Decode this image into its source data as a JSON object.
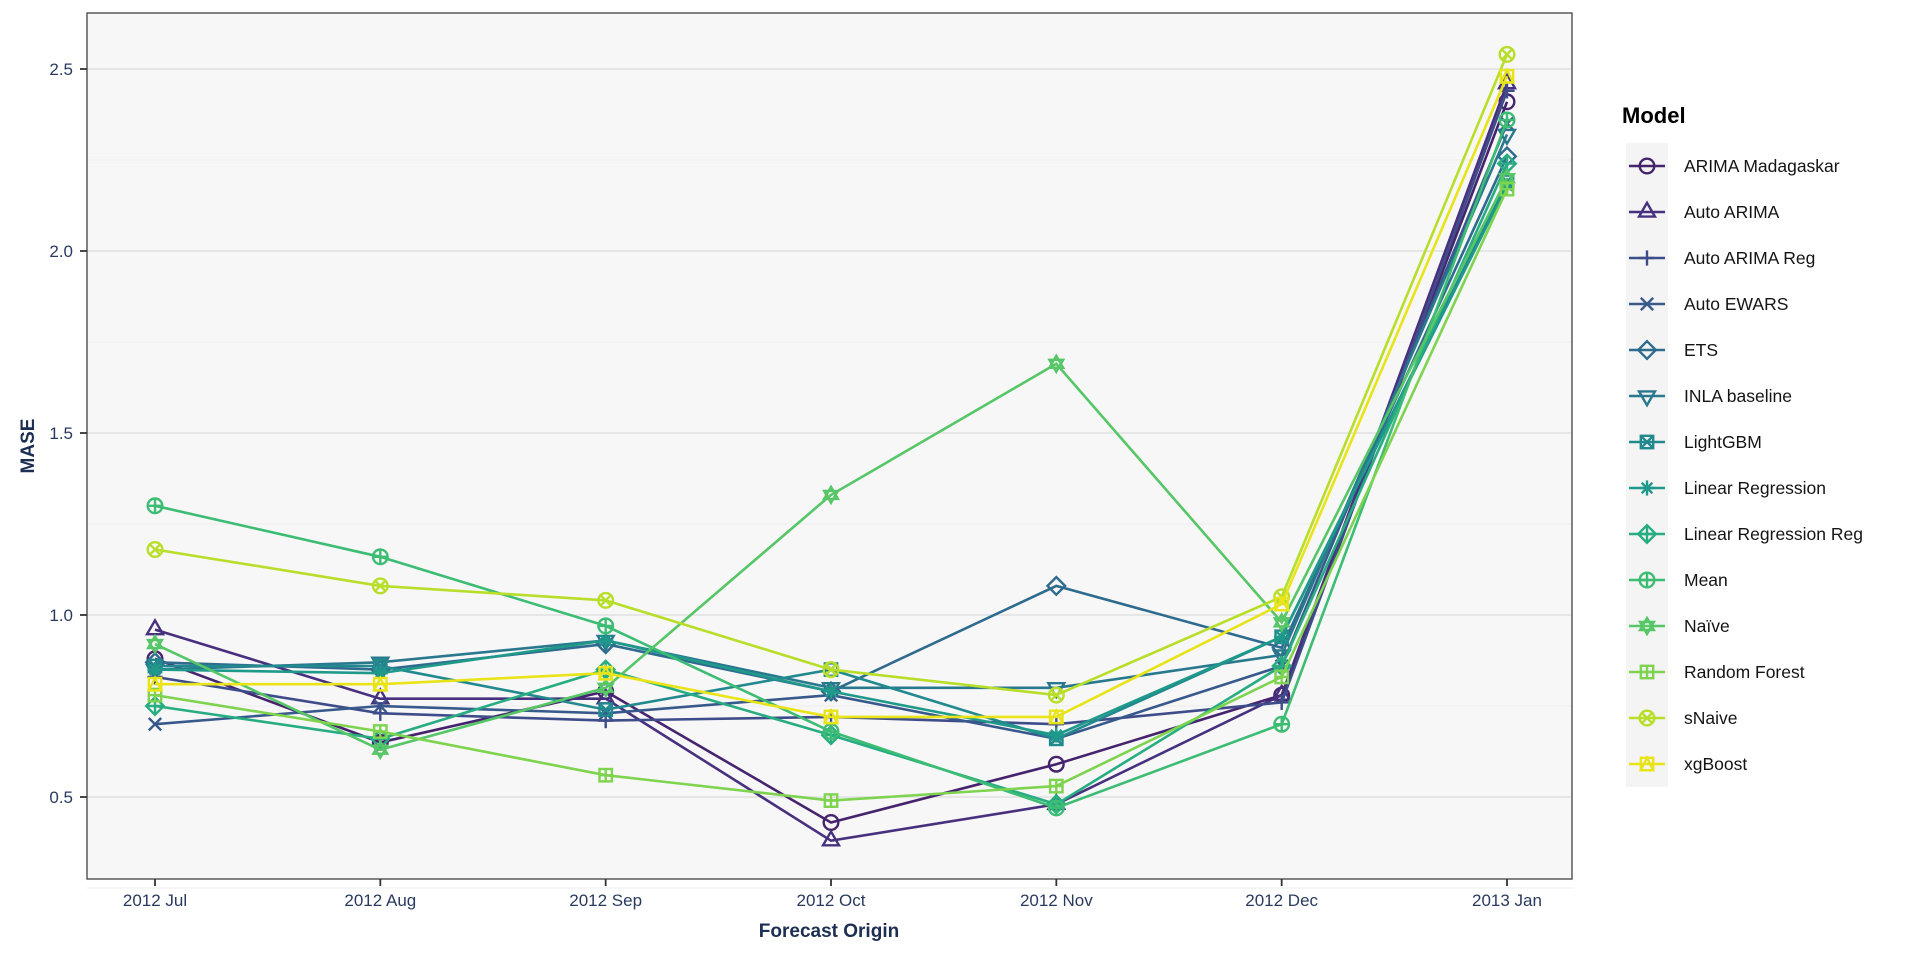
{
  "figure": {
    "legend": {
      "title": "Model"
    },
    "y_axis": {
      "title": "MASE",
      "tick_labels": [
        "0.5",
        "1.0",
        "1.5",
        "2.0",
        "2.5"
      ],
      "tick_values": [
        0.5,
        1.0,
        1.5,
        2.0,
        2.5
      ]
    },
    "x_axis": {
      "title": "Forecast Origin",
      "tick_labels": [
        "2012 Jul",
        "2012 Aug",
        "2012 Sep",
        "2012 Oct",
        "2012 Nov",
        "2012 Dec",
        "2013 Jan"
      ]
    },
    "colors": {
      "panel_background": "#f7f7f7",
      "grid_major": "#e1e1e1",
      "grid_minor": "#eeeeee",
      "panel_border": "#4f4f4f",
      "axis_text": "#2a3a5f",
      "axis_title": "#1c2e52",
      "legend_text": "#141414",
      "legend_key_background": "#f4f4f4"
    }
  },
  "chart_data": {
    "type": "line",
    "title": "",
    "xlabel": "Forecast Origin",
    "ylabel": "MASE",
    "legend_title": "Model",
    "legend_position": "right",
    "grid": true,
    "ylim": [
      0.27,
      2.66
    ],
    "y_major_ticks": [
      0.5,
      1.0,
      1.5,
      2.0,
      2.5
    ],
    "y_minor_ticks": [
      0.25,
      0.75,
      1.25,
      1.75,
      2.25
    ],
    "x": [
      "2012 Jul",
      "2012 Aug",
      "2012 Sep",
      "2012 Oct",
      "2012 Nov",
      "2012 Dec",
      "2013 Jan"
    ],
    "series": [
      {
        "name": "ARIMA Madagaskar",
        "color": "#46246d",
        "pch": 1,
        "marker": "open-circle",
        "values": [
          0.88,
          0.65,
          0.79,
          0.43,
          0.59,
          0.78,
          2.41
        ]
      },
      {
        "name": "Auto ARIMA",
        "color": "#47307e",
        "pch": 2,
        "marker": "open-triangle-up",
        "values": [
          0.96,
          0.77,
          0.77,
          0.38,
          0.48,
          0.78,
          2.46
        ]
      },
      {
        "name": "Auto ARIMA Reg",
        "color": "#3e4c8a",
        "pch": 3,
        "marker": "plus",
        "values": [
          0.83,
          0.73,
          0.71,
          0.72,
          0.7,
          0.76,
          2.44
        ]
      },
      {
        "name": "Auto EWARS",
        "color": "#38598c",
        "pch": 4,
        "marker": "x",
        "values": [
          0.7,
          0.75,
          0.73,
          0.78,
          0.66,
          0.86,
          2.35
        ]
      },
      {
        "name": "ETS",
        "color": "#2f6b8e",
        "pch": 5,
        "marker": "open-diamond",
        "values": [
          0.87,
          0.85,
          0.92,
          0.79,
          1.08,
          0.91,
          2.26
        ]
      },
      {
        "name": "INLA baseline",
        "color": "#29788e",
        "pch": 6,
        "marker": "open-triangle-down",
        "values": [
          0.85,
          0.87,
          0.93,
          0.8,
          0.8,
          0.89,
          2.32
        ]
      },
      {
        "name": "LightGBM",
        "color": "#22898e",
        "pch": 7,
        "marker": "square-x",
        "values": [
          0.86,
          0.86,
          0.74,
          0.85,
          0.66,
          0.94,
          2.19
        ]
      },
      {
        "name": "Linear Regression",
        "color": "#1f9a8a",
        "pch": 8,
        "marker": "asterisk",
        "values": [
          0.85,
          0.84,
          0.93,
          0.79,
          0.67,
          0.94,
          2.18
        ]
      },
      {
        "name": "Linear Regression Reg",
        "color": "#27ad81",
        "pch": 9,
        "marker": "diamond-plus",
        "values": [
          0.75,
          0.66,
          0.85,
          0.67,
          0.48,
          0.86,
          2.24
        ]
      },
      {
        "name": "Mean",
        "color": "#3dbc74",
        "pch": 10,
        "marker": "circle-plus",
        "values": [
          1.3,
          1.16,
          0.97,
          0.68,
          0.47,
          0.7,
          2.36
        ]
      },
      {
        "name": "Naïve",
        "color": "#56c667",
        "pch": 11,
        "marker": "triangle-up-down",
        "values": [
          0.92,
          0.63,
          0.8,
          1.33,
          1.69,
          0.98,
          2.2
        ]
      },
      {
        "name": "Random Forest",
        "color": "#7ed34f",
        "pch": 12,
        "marker": "square-plus",
        "values": [
          0.78,
          0.68,
          0.56,
          0.49,
          0.53,
          0.83,
          2.17
        ]
      },
      {
        "name": "sNaive",
        "color": "#b8de29",
        "pch": 13,
        "marker": "circle-x",
        "values": [
          1.18,
          1.08,
          1.04,
          0.85,
          0.78,
          1.05,
          2.54
        ]
      },
      {
        "name": "xgBoost",
        "color": "#e8e419",
        "pch": 14,
        "marker": "square-triangle",
        "values": [
          0.81,
          0.81,
          0.84,
          0.72,
          0.72,
          1.03,
          2.48
        ]
      }
    ]
  }
}
